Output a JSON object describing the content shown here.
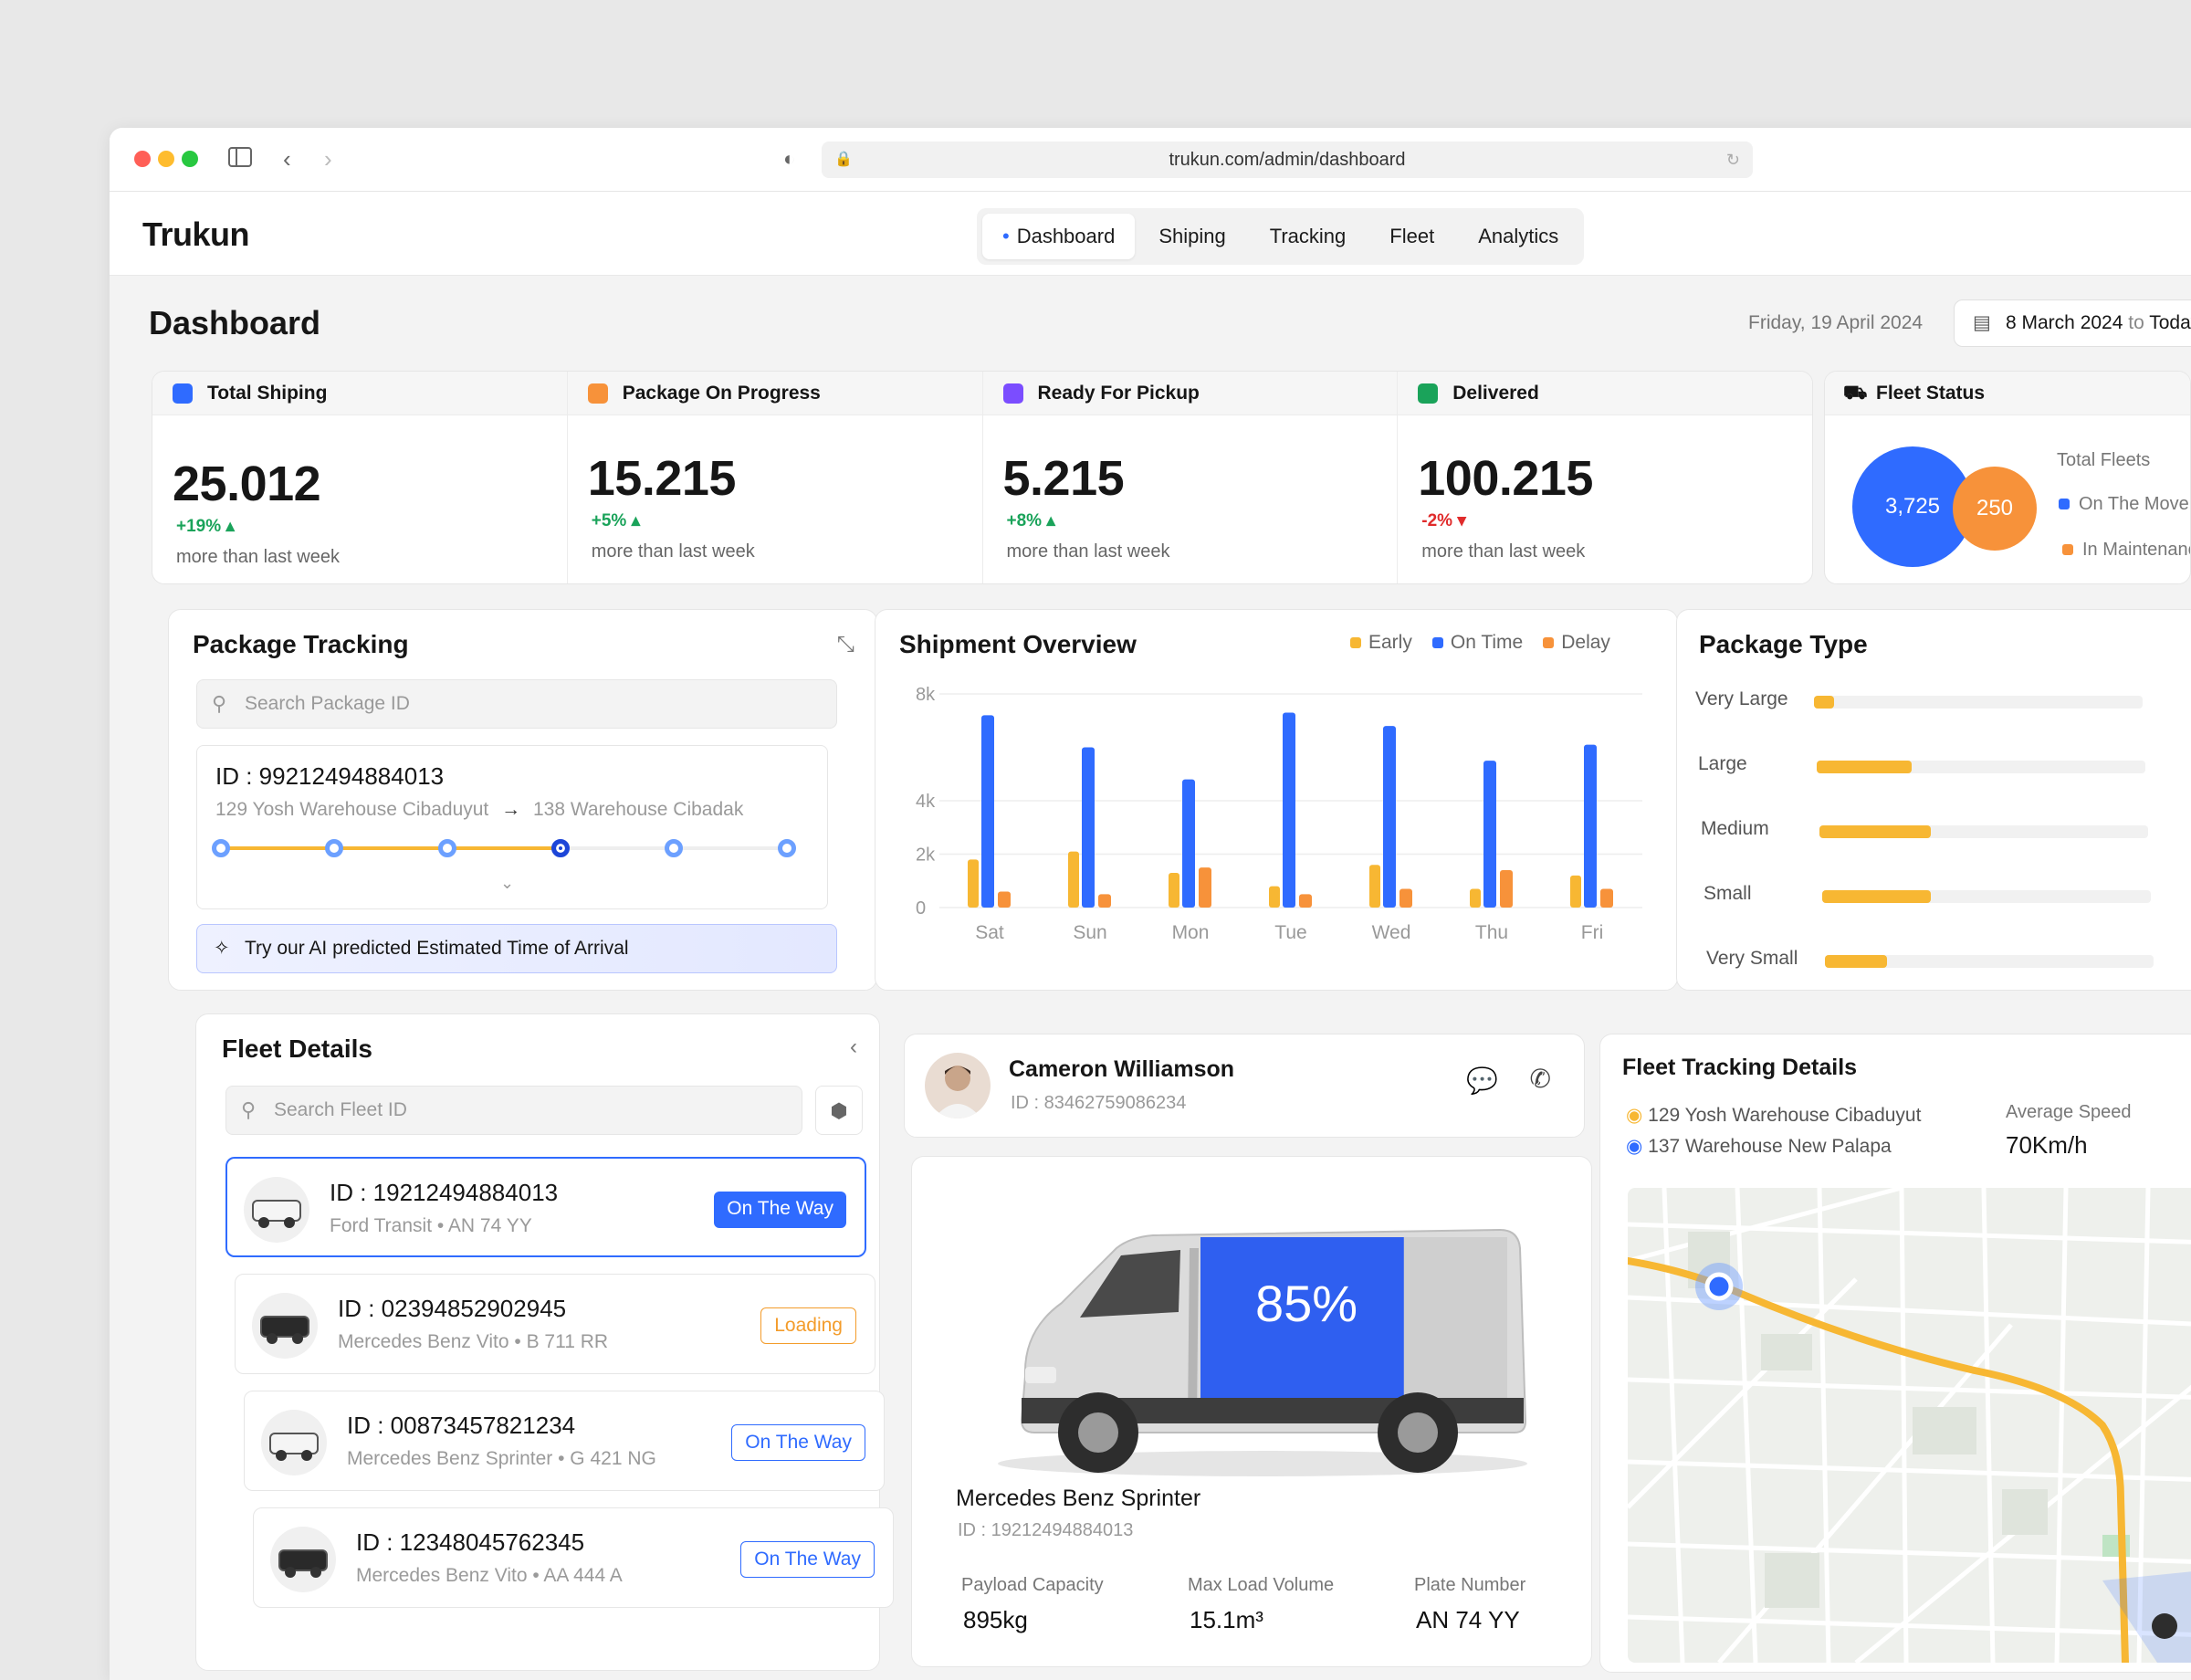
{
  "browser": {
    "url": "trukun.com/admin/dashboard"
  },
  "app": {
    "logo": "Trukun"
  },
  "nav": {
    "tabs": [
      "Dashboard",
      "Shiping",
      "Tracking",
      "Fleet",
      "Analytics"
    ],
    "active": "Dashboard"
  },
  "header": {
    "title": "Dashboard",
    "date": "Friday, 19 April 2024",
    "range_start": "8 March 2024",
    "range_to": "to",
    "range_end": "Today"
  },
  "stats": [
    {
      "label": "Total Shiping",
      "value": "25.012",
      "delta": "+19%",
      "direction": "up",
      "note": "more than last week",
      "icon_color": "#2f6bff"
    },
    {
      "label": "Package On Progress",
      "value": "15.215",
      "delta": "+5%",
      "direction": "up",
      "note": "more than last week",
      "icon_color": "#f7923a"
    },
    {
      "label": "Ready For Pickup",
      "value": "5.215",
      "delta": "+8%",
      "direction": "up",
      "note": "more than last week",
      "icon_color": "#7b4dff"
    },
    {
      "label": "Delivered",
      "value": "100.215",
      "delta": "-2%",
      "direction": "down",
      "note": "more than last week",
      "icon_color": "#1aa35a"
    }
  ],
  "fleet_status": {
    "title": "Fleet Status",
    "on_the_move": "3,725",
    "maintenance": "250",
    "total_label": "Total Fleets",
    "legend_move": "On The Move",
    "legend_maint": "In Maintenance"
  },
  "package_tracking": {
    "title": "Package Tracking",
    "search_placeholder": "Search Package ID",
    "id": "ID : 99212494884013",
    "from": "129 Yosh Warehouse Cibaduyut",
    "to": "138 Warehouse Cibadak",
    "steps_total": 6,
    "current_step": 4,
    "ai_text": "Try our AI predicted Estimated Time of Arrival"
  },
  "chart_data": {
    "type": "bar",
    "title": "Shipment Overview",
    "categories": [
      "Sat",
      "Sun",
      "Mon",
      "Tue",
      "Wed",
      "Thu",
      "Fri"
    ],
    "series": [
      {
        "name": "Early",
        "color": "#f7b733",
        "values": [
          1.8,
          2.1,
          1.3,
          0.8,
          1.6,
          0.7,
          1.2
        ]
      },
      {
        "name": "On Time",
        "color": "#2f6bff",
        "values": [
          7.2,
          6.0,
          4.8,
          7.3,
          6.8,
          5.5,
          6.1
        ]
      },
      {
        "name": "Delay",
        "color": "#f7923a",
        "values": [
          0.6,
          0.5,
          1.5,
          0.5,
          0.7,
          1.4,
          0.7
        ]
      }
    ],
    "y_ticks": [
      "0",
      "2k",
      "4k",
      "8k"
    ],
    "ylim": [
      0,
      8
    ]
  },
  "package_type": {
    "title": "Package Type",
    "items": [
      {
        "label": "Very Large",
        "value": 0.06
      },
      {
        "label": "Large",
        "value": 0.29
      },
      {
        "label": "Medium",
        "value": 0.34
      },
      {
        "label": "Small",
        "value": 0.33
      },
      {
        "label": "Very Small",
        "value": 0.19
      }
    ]
  },
  "fleet_details": {
    "title": "Fleet Details",
    "search_placeholder": "Search Fleet ID",
    "items": [
      {
        "id": "ID : 19212494884013",
        "model": "Ford Transit",
        "plate": "AN 74 YY",
        "status": "On The Way",
        "style": "fill"
      },
      {
        "id": "ID : 02394852902945",
        "model": "Mercedes Benz Vito",
        "plate": "B 711 RR",
        "status": "Loading",
        "style": "warn"
      },
      {
        "id": "ID : 00873457821234",
        "model": "Mercedes Benz Sprinter",
        "plate": "G 421 NG",
        "status": "On The Way",
        "style": "out"
      },
      {
        "id": "ID : 12348045762345",
        "model": "Mercedes Benz Vito",
        "plate": "AA 444 A",
        "status": "On The Way",
        "style": "out"
      }
    ]
  },
  "driver": {
    "name": "Cameron Williamson",
    "id": "ID : 83462759086234"
  },
  "vehicle": {
    "fill_percent": "85%",
    "fill_level": 0.85,
    "name": "Mercedes Benz Sprinter",
    "id": "ID : 19212494884013",
    "payload_label": "Payload Capacity",
    "payload_value": "895kg",
    "volume_label": "Max Load Volume",
    "volume_value": "15.1m³",
    "plate_label": "Plate Number",
    "plate_value": "AN 74 YY"
  },
  "fleet_tracking": {
    "title": "Fleet Tracking Details",
    "from": "129 Yosh Warehouse Cibaduyut",
    "to": "137 Warehouse New Palapa",
    "speed_label": "Average Speed",
    "speed_value": "70Km/h"
  }
}
